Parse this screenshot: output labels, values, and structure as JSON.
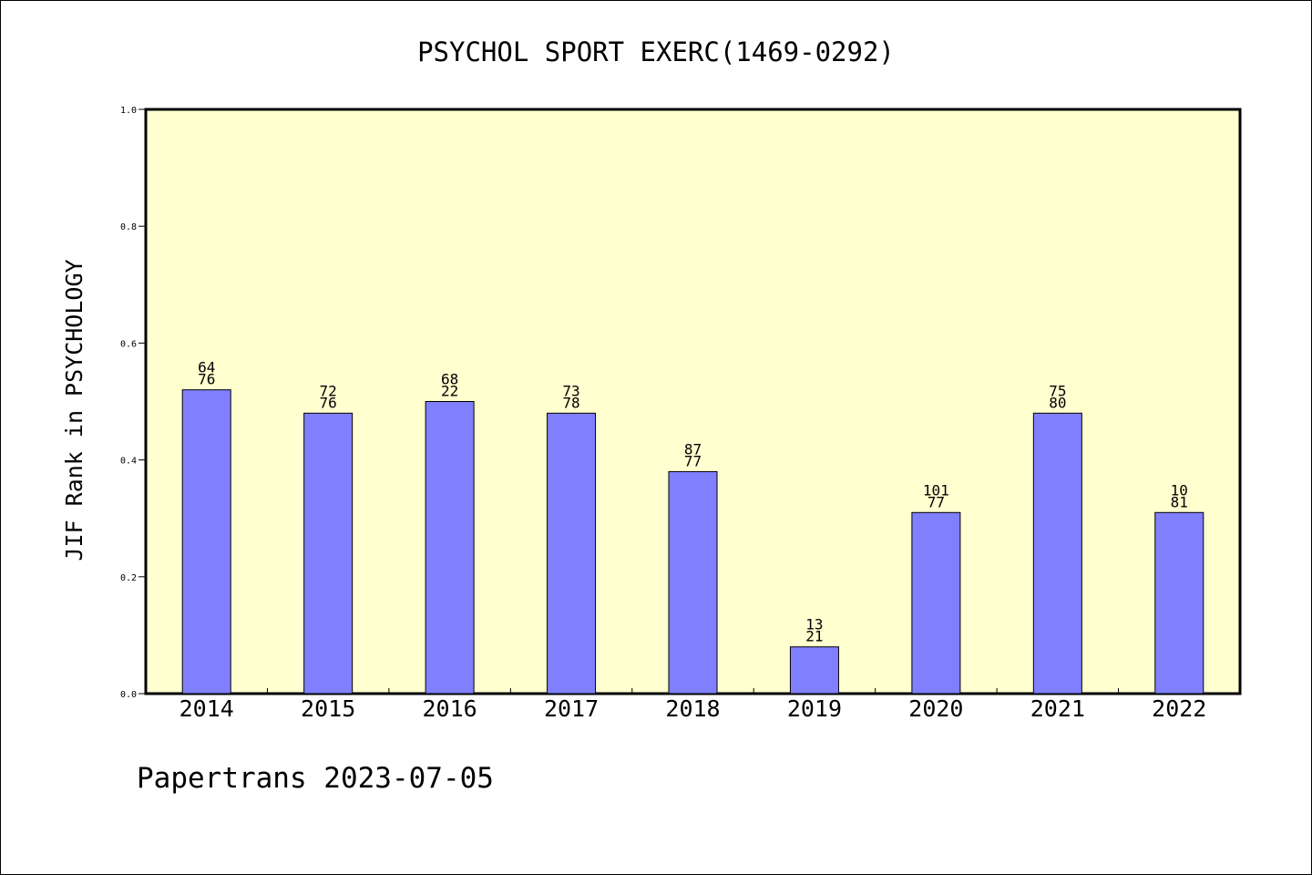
{
  "chart_data": {
    "type": "bar",
    "title": "PSYCHOL SPORT EXERC(1469-0292)",
    "xlabel": "",
    "ylabel": "JIF Rank in PSYCHOLOGY",
    "ylim": [
      0,
      1.0
    ],
    "yticks": [
      "0.0",
      "0.2",
      "0.4",
      "0.6",
      "0.8",
      "1.0"
    ],
    "categories": [
      "2014",
      "2015",
      "2016",
      "2017",
      "2018",
      "2019",
      "2020",
      "2021",
      "2022"
    ],
    "values": [
      0.52,
      0.48,
      0.5,
      0.48,
      0.38,
      0.08,
      0.31,
      0.48,
      0.31
    ],
    "rank_labels": [
      [
        "64",
        "76"
      ],
      [
        "72",
        "76"
      ],
      [
        "68",
        "22"
      ],
      [
        "73",
        "78"
      ],
      [
        "87",
        "77"
      ],
      [
        "13",
        "21"
      ],
      [
        "101",
        "77"
      ],
      [
        "75",
        "80"
      ],
      [
        "10",
        "81"
      ]
    ],
    "grid": false,
    "colors": {
      "plot_background": "#ffffd0",
      "bar_fill": "#8080ff",
      "bar_stroke": "#000000"
    }
  },
  "footer": {
    "text": "Papertrans 2023-07-05"
  }
}
